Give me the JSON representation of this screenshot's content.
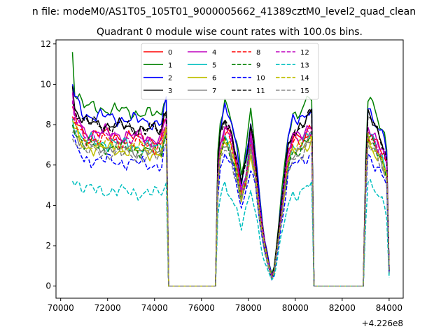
{
  "chart_data": {
    "type": "line",
    "suptitle": "n file: modeM0/AS1T05_105T01_9000005662_41389cztM0_level2_quad_clean",
    "title": "Quadrant 0 module wise count rates with 100.0s bins.",
    "xlabel": "",
    "ylabel": "",
    "x_offset_label": "+4.226e8",
    "xlim": [
      69800,
      84600
    ],
    "ylim": [
      -0.6,
      12.2
    ],
    "xticks": [
      70000,
      72000,
      74000,
      76000,
      78000,
      80000,
      82000,
      84000
    ],
    "xtick_labels": [
      "70000",
      "72000",
      "74000",
      "76000",
      "78000",
      "80000",
      "82000",
      "84000"
    ],
    "yticks": [
      0,
      2,
      4,
      6,
      8,
      10,
      12
    ],
    "ytick_labels": [
      "0",
      "2",
      "4",
      "6",
      "8",
      "10",
      "12"
    ],
    "grid": false,
    "legend_position": "top-center",
    "legend_columns": 4,
    "segments": [
      [
        70500,
        74500
      ],
      [
        76700,
        79000
      ],
      [
        79100,
        80700
      ],
      [
        83000,
        84000
      ]
    ],
    "series": [
      {
        "name": "0",
        "color": "#ff0000",
        "dash": false,
        "level": 7.6,
        "first": 8.9
      },
      {
        "name": "1",
        "color": "#008000",
        "dash": false,
        "level": 8.9,
        "first": 11.6
      },
      {
        "name": "2",
        "color": "#0000ff",
        "dash": false,
        "level": 8.5,
        "first": 10.0
      },
      {
        "name": "3",
        "color": "#000000",
        "dash": false,
        "level": 8.1,
        "first": 9.9
      },
      {
        "name": "4",
        "color": "#bf00bf",
        "dash": false,
        "level": 7.7,
        "first": 9.6
      },
      {
        "name": "5",
        "color": "#00bfbf",
        "dash": false,
        "level": 7.2,
        "first": 8.3
      },
      {
        "name": "6",
        "color": "#bfbf00",
        "dash": false,
        "level": 6.9,
        "first": 7.9
      },
      {
        "name": "7",
        "color": "#808080",
        "dash": false,
        "level": 7.0,
        "first": 7.6
      },
      {
        "name": "8",
        "color": "#ff0000",
        "dash": true,
        "level": 7.3,
        "first": 8.4
      },
      {
        "name": "9",
        "color": "#008000",
        "dash": true,
        "level": 7.0,
        "first": 8.0
      },
      {
        "name": "10",
        "color": "#0000ff",
        "dash": true,
        "level": 6.3,
        "first": 7.5
      },
      {
        "name": "11",
        "color": "#000000",
        "dash": true,
        "level": 8.1,
        "first": 9.1
      },
      {
        "name": "12",
        "color": "#bf00bf",
        "dash": true,
        "level": 7.5,
        "first": 9.2
      },
      {
        "name": "13",
        "color": "#00bfbf",
        "dash": true,
        "level": 4.8,
        "first": 5.2
      },
      {
        "name": "14",
        "color": "#bfbf00",
        "dash": true,
        "level": 7.1,
        "first": 8.2
      },
      {
        "name": "15",
        "color": "#808080",
        "dash": true,
        "level": 6.7,
        "first": 7.3
      }
    ]
  }
}
